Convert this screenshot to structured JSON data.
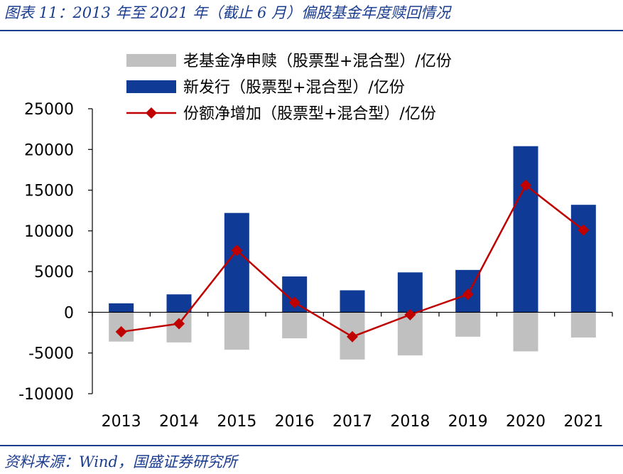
{
  "figure": {
    "title": "图表 11：2013 年至 2021 年（截止 6 月）偏股基金年度赎回情况",
    "source": "资料来源：Wind，国盛证券研究所"
  },
  "chart_data": {
    "type": "bar",
    "categories": [
      "2013",
      "2014",
      "2015",
      "2016",
      "2017",
      "2018",
      "2019",
      "2020",
      "2021"
    ],
    "series": [
      {
        "name": "老基金净申赎（股票型+混合型）/亿份",
        "type": "bar",
        "color": "#c0c0c0",
        "values": [
          -3600,
          -3700,
          -4600,
          -3200,
          -5800,
          -5300,
          -3000,
          -4800,
          -3100
        ]
      },
      {
        "name": "新发行（股票型+混合型）/亿份",
        "type": "bar",
        "color": "#0f3b96",
        "values": [
          1100,
          2200,
          12200,
          4400,
          2700,
          4900,
          5200,
          20400,
          13200
        ]
      },
      {
        "name": "份额净增加（股票型+混合型）/亿份",
        "type": "line",
        "color": "#c00000",
        "marker": "diamond",
        "values": [
          -2400,
          -1400,
          7600,
          1200,
          -3000,
          -300,
          2200,
          15600,
          10100
        ]
      }
    ],
    "ylim": [
      -10000,
      25000
    ],
    "yticks": [
      "25000",
      "20000",
      "15000",
      "10000",
      "5000",
      "0",
      "-5000",
      "-10000"
    ],
    "ytick_values": [
      25000,
      20000,
      15000,
      10000,
      5000,
      0,
      -5000,
      -10000
    ],
    "legend_position": "top",
    "grid": false
  }
}
